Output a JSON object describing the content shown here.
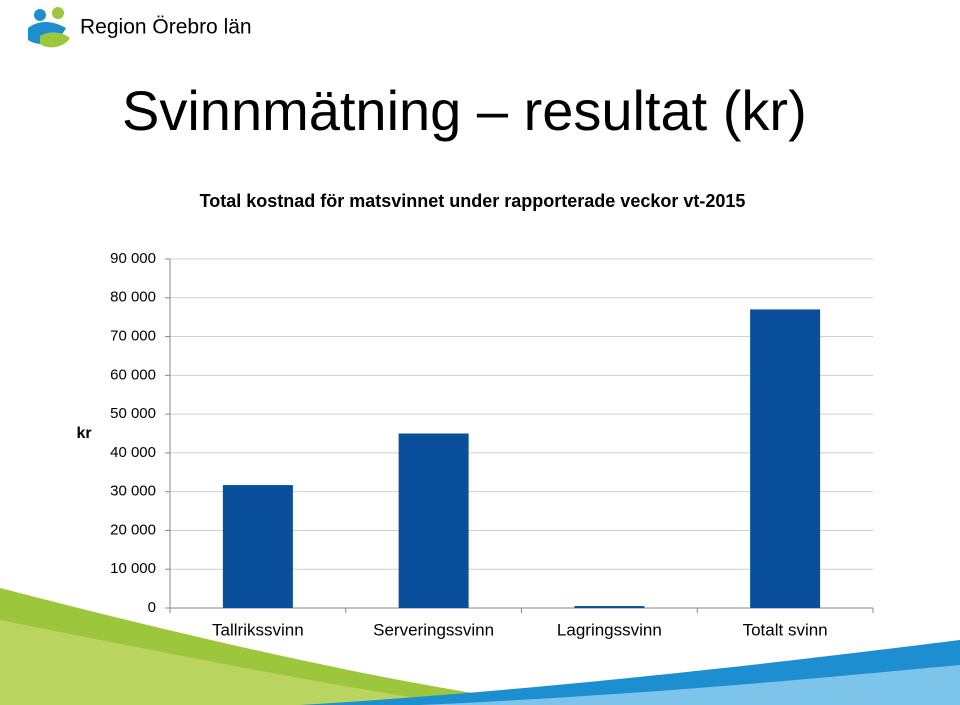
{
  "header": {
    "logo_text": "Region Örebro län",
    "title": "Svinnmätning – resultat (kr)"
  },
  "chart_data": {
    "type": "bar",
    "title": "Total kostnad för matsvinnet under rapporterade veckor vt-2015",
    "y_label": "kr",
    "categories": [
      "Tallrikssvinn",
      "Serveringssvinn",
      "Lagringssvinn",
      "Totalt svinn"
    ],
    "values": [
      31700,
      45000,
      500,
      77000
    ],
    "color": "#0a4f9c",
    "ylim": [
      0,
      90000
    ],
    "yticks": [
      0,
      {
        "value": 10000,
        "label": "10 000"
      },
      {
        "value": 20000,
        "label": "20 000"
      },
      {
        "value": 30000,
        "label": "30 000"
      },
      {
        "value": 40000,
        "label": "40 000"
      },
      {
        "value": 50000,
        "label": "50 000"
      },
      {
        "value": 60000,
        "label": "60 000"
      },
      {
        "value": 70000,
        "label": "70 000"
      },
      {
        "value": 80000,
        "label": "80 000"
      },
      {
        "value": 90000,
        "label": "90 000"
      }
    ],
    "grid": true
  }
}
